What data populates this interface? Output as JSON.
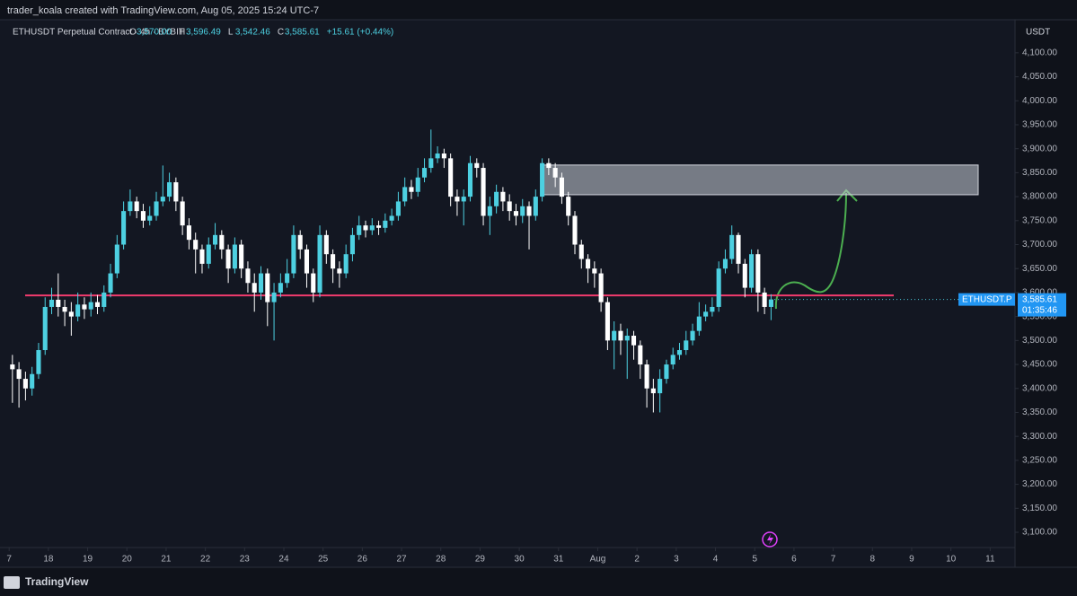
{
  "header": {
    "credit": "trader_koala created with TradingView.com, Aug 05, 2025 15:24 UTC-7",
    "symbol": "ETHUSDT Perpetual Contract · 4h · BYBIT",
    "ohlc": [
      {
        "key": "O",
        "value": "3,570.00"
      },
      {
        "key": "H",
        "value": "3,596.49"
      },
      {
        "key": "L",
        "value": "3,542.46"
      },
      {
        "key": "C",
        "value": "3,585.61"
      }
    ],
    "change": "+15.61 (+0.44%)",
    "currency": "USDT",
    "price_tag": {
      "symbol": "ETHUSDT.P",
      "price": "3,585.61",
      "countdown": "01:35:46"
    }
  },
  "footer": {
    "brand": "TradingView"
  },
  "chart_data": {
    "type": "candlestick",
    "up_color": "#4dd0e1",
    "down_color": "#ffffff",
    "open": [
      3450,
      3440,
      3420,
      3400,
      3430,
      3480,
      3570,
      3585,
      3570,
      3560,
      3550,
      3575,
      3565,
      3580,
      3570,
      3600,
      3640,
      3700,
      3770,
      3790,
      3770,
      3750,
      3760,
      3790,
      3800,
      3830,
      3790,
      3740,
      3710,
      3690,
      3660,
      3700,
      3720,
      3690,
      3650,
      3700,
      3650,
      3620,
      3600,
      3640,
      3580,
      3600,
      3620,
      3640,
      3720,
      3690,
      3640,
      3600,
      3720,
      3680,
      3650,
      3640,
      3680,
      3720,
      3740,
      3730,
      3740,
      3735,
      3750,
      3760,
      3790,
      3820,
      3810,
      3840,
      3860,
      3880,
      3890,
      3880,
      3800,
      3790,
      3800,
      3870,
      3860,
      3760,
      3780,
      3810,
      3790,
      3770,
      3760,
      3780,
      3760,
      3800,
      3870,
      3860,
      3840,
      3800,
      3760,
      3700,
      3670,
      3650,
      3640,
      3580,
      3500,
      3520,
      3500,
      3510,
      3490,
      3450,
      3400,
      3390,
      3420,
      3450,
      3470,
      3480,
      3500,
      3520,
      3550,
      3560,
      3570,
      3650,
      3670,
      3720,
      3660,
      3610,
      3680,
      3600,
      3570
    ],
    "high": [
      3470,
      3455,
      3435,
      3445,
      3495,
      3590,
      3610,
      3640,
      3585,
      3580,
      3600,
      3590,
      3600,
      3595,
      3615,
      3660,
      3720,
      3790,
      3815,
      3800,
      3785,
      3780,
      3810,
      3865,
      3850,
      3840,
      3800,
      3755,
      3725,
      3700,
      3715,
      3745,
      3730,
      3700,
      3715,
      3710,
      3665,
      3640,
      3655,
      3650,
      3620,
      3640,
      3670,
      3740,
      3730,
      3700,
      3650,
      3740,
      3730,
      3690,
      3665,
      3700,
      3735,
      3760,
      3750,
      3755,
      3750,
      3765,
      3775,
      3810,
      3840,
      3835,
      3860,
      3880,
      3940,
      3905,
      3900,
      3890,
      3815,
      3815,
      3885,
      3880,
      3870,
      3800,
      3825,
      3820,
      3805,
      3785,
      3795,
      3790,
      3815,
      3880,
      3880,
      3870,
      3850,
      3810,
      3770,
      3710,
      3680,
      3665,
      3650,
      3590,
      3540,
      3535,
      3525,
      3520,
      3500,
      3460,
      3420,
      3440,
      3460,
      3485,
      3495,
      3520,
      3535,
      3580,
      3575,
      3590,
      3665,
      3690,
      3740,
      3725,
      3670,
      3690,
      3690,
      3610,
      3596.49
    ],
    "low": [
      3370,
      3360,
      3375,
      3385,
      3420,
      3470,
      3555,
      3550,
      3530,
      3510,
      3540,
      3545,
      3550,
      3555,
      3560,
      3590,
      3630,
      3690,
      3760,
      3755,
      3735,
      3740,
      3750,
      3780,
      3790,
      3770,
      3720,
      3690,
      3640,
      3640,
      3650,
      3690,
      3670,
      3620,
      3640,
      3630,
      3600,
      3560,
      3585,
      3530,
      3500,
      3590,
      3610,
      3630,
      3670,
      3610,
      3580,
      3590,
      3660,
      3620,
      3610,
      3630,
      3665,
      3710,
      3715,
      3720,
      3720,
      3725,
      3740,
      3750,
      3780,
      3795,
      3800,
      3830,
      3850,
      3870,
      3860,
      3780,
      3760,
      3740,
      3790,
      3840,
      3740,
      3720,
      3765,
      3770,
      3750,
      3740,
      3745,
      3690,
      3750,
      3790,
      3845,
      3820,
      3785,
      3740,
      3680,
      3650,
      3620,
      3610,
      3560,
      3480,
      3440,
      3470,
      3420,
      3460,
      3420,
      3360,
      3350,
      3350,
      3410,
      3440,
      3460,
      3470,
      3490,
      3510,
      3540,
      3550,
      3560,
      3640,
      3660,
      3640,
      3590,
      3600,
      3560,
      3555,
      3542.46
    ],
    "close": [
      3440,
      3420,
      3400,
      3430,
      3480,
      3570,
      3585,
      3570,
      3560,
      3550,
      3575,
      3565,
      3580,
      3570,
      3600,
      3640,
      3700,
      3770,
      3790,
      3770,
      3750,
      3760,
      3790,
      3800,
      3830,
      3790,
      3740,
      3710,
      3690,
      3660,
      3700,
      3720,
      3690,
      3650,
      3700,
      3650,
      3620,
      3600,
      3640,
      3580,
      3600,
      3620,
      3640,
      3720,
      3690,
      3640,
      3600,
      3720,
      3680,
      3650,
      3640,
      3680,
      3720,
      3740,
      3730,
      3740,
      3735,
      3750,
      3760,
      3790,
      3820,
      3810,
      3840,
      3860,
      3880,
      3890,
      3880,
      3800,
      3790,
      3800,
      3870,
      3860,
      3760,
      3780,
      3810,
      3790,
      3770,
      3760,
      3780,
      3760,
      3800,
      3870,
      3860,
      3840,
      3800,
      3760,
      3700,
      3670,
      3650,
      3640,
      3580,
      3500,
      3520,
      3500,
      3510,
      3490,
      3450,
      3400,
      3390,
      3420,
      3450,
      3470,
      3480,
      3500,
      3520,
      3550,
      3560,
      3570,
      3650,
      3670,
      3720,
      3660,
      3610,
      3680,
      3600,
      3570,
      3585.61
    ],
    "xlim": [
      -1.4,
      153.8
    ],
    "xticks": [
      {
        "value": 0,
        "label": "7"
      },
      {
        "value": 6,
        "label": "18"
      },
      {
        "value": 12,
        "label": "19"
      },
      {
        "value": 18,
        "label": "20"
      },
      {
        "value": 24,
        "label": "21"
      },
      {
        "value": 30,
        "label": "22"
      },
      {
        "value": 36,
        "label": "23"
      },
      {
        "value": 42,
        "label": "24"
      },
      {
        "value": 48,
        "label": "25"
      },
      {
        "value": 54,
        "label": "26"
      },
      {
        "value": 60,
        "label": "27"
      },
      {
        "value": 66,
        "label": "28"
      },
      {
        "value": 72,
        "label": "29"
      },
      {
        "value": 78,
        "label": "30"
      },
      {
        "value": 84,
        "label": "31"
      },
      {
        "value": 90,
        "label": "Aug"
      },
      {
        "value": 96,
        "label": "2"
      },
      {
        "value": 102,
        "label": "3"
      },
      {
        "value": 108,
        "label": "4"
      },
      {
        "value": 114,
        "label": "5"
      },
      {
        "value": 120,
        "label": "6"
      },
      {
        "value": 126,
        "label": "7"
      },
      {
        "value": 132,
        "label": "8"
      },
      {
        "value": 138,
        "label": "9"
      },
      {
        "value": 144,
        "label": "10"
      },
      {
        "value": 150,
        "label": "11"
      }
    ],
    "ylim": [
      3027,
      4169
    ],
    "yticks": [
      {
        "value": 3100,
        "label": "3,100.00"
      },
      {
        "value": 3150,
        "label": "3,150.00"
      },
      {
        "value": 3200,
        "label": "3,200.00"
      },
      {
        "value": 3250,
        "label": "3,250.00"
      },
      {
        "value": 3300,
        "label": "3,300.00"
      },
      {
        "value": 3350,
        "label": "3,350.00"
      },
      {
        "value": 3400,
        "label": "3,400.00"
      },
      {
        "value": 3450,
        "label": "3,450.00"
      },
      {
        "value": 3500,
        "label": "3,500.00"
      },
      {
        "value": 3550,
        "label": "3,550.00"
      },
      {
        "value": 3600,
        "label": "3,600.00"
      },
      {
        "value": 3650,
        "label": "3,650.00"
      },
      {
        "value": 3700,
        "label": "3,700.00"
      },
      {
        "value": 3750,
        "label": "3,750.00"
      },
      {
        "value": 3800,
        "label": "3,800.00"
      },
      {
        "value": 3850,
        "label": "3,850.00"
      },
      {
        "value": 3900,
        "label": "3,900.00"
      },
      {
        "value": 3950,
        "label": "3,950.00"
      },
      {
        "value": 4000,
        "label": "4,000.00"
      },
      {
        "value": 4050,
        "label": "4,050.00"
      },
      {
        "value": 4100,
        "label": "4,100.00"
      }
    ],
    "support_level": 3594,
    "support_color": "#f23b6e",
    "resistance_zone": [
      3804,
      3866
    ]
  }
}
